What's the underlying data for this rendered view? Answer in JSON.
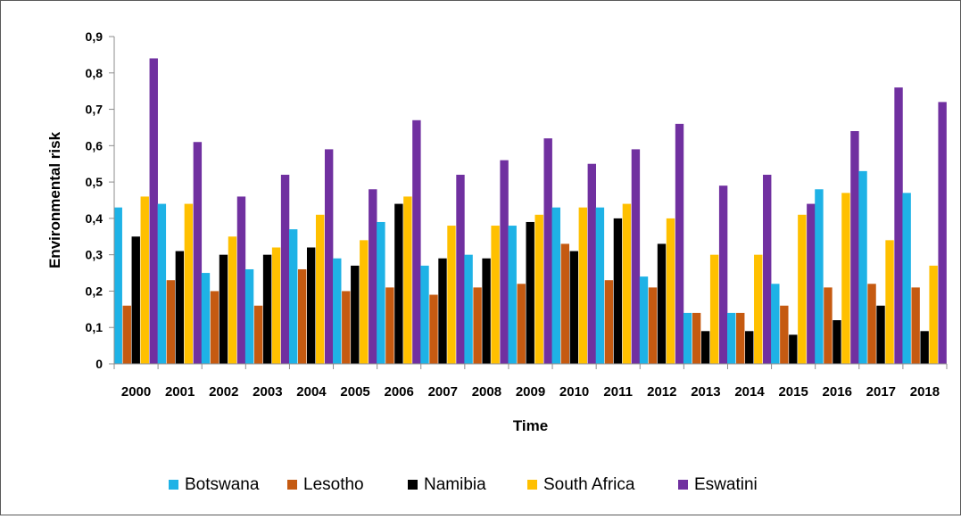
{
  "chart_data": {
    "type": "bar",
    "title": "",
    "xlabel": "Time",
    "ylabel": "Environmental risk",
    "ylim": [
      0,
      0.9
    ],
    "yticks": [
      "0",
      "0,1",
      "0,2",
      "0,3",
      "0,4",
      "0,5",
      "0,6",
      "0,7",
      "0,8",
      "0,9"
    ],
    "categories": [
      "2000",
      "2001",
      "2002",
      "2003",
      "2004",
      "2005",
      "2006",
      "2007",
      "2008",
      "2009",
      "2010",
      "2011",
      "2012",
      "2013",
      "2014",
      "2015",
      "2016",
      "2017",
      "2018"
    ],
    "legend_position": "bottom",
    "series": [
      {
        "name": "Botswana",
        "color": "#1EB2E6",
        "values": [
          0.43,
          0.44,
          0.25,
          0.26,
          0.37,
          0.29,
          0.39,
          0.27,
          0.3,
          0.38,
          0.43,
          0.43,
          0.24,
          0.14,
          0.14,
          0.22,
          0.48,
          0.53,
          0.47
        ]
      },
      {
        "name": "Lesotho",
        "color": "#C55A11",
        "values": [
          0.16,
          0.23,
          0.2,
          0.16,
          0.26,
          0.2,
          0.21,
          0.19,
          0.21,
          0.22,
          0.33,
          0.23,
          0.21,
          0.14,
          0.14,
          0.16,
          0.21,
          0.22,
          0.21
        ]
      },
      {
        "name": "Namibia",
        "color": "#000000",
        "values": [
          0.35,
          0.31,
          0.3,
          0.3,
          0.32,
          0.27,
          0.44,
          0.29,
          0.29,
          0.39,
          0.31,
          0.4,
          0.33,
          0.09,
          0.09,
          0.08,
          0.12,
          0.16,
          0.09
        ]
      },
      {
        "name": "South Africa",
        "color": "#FFC000",
        "values": [
          0.46,
          0.44,
          0.35,
          0.32,
          0.41,
          0.34,
          0.46,
          0.38,
          0.38,
          0.41,
          0.43,
          0.44,
          0.4,
          0.3,
          0.3,
          0.41,
          0.47,
          0.34,
          0.27
        ]
      },
      {
        "name": "Eswatini",
        "color": "#7030A0",
        "values": [
          0.84,
          0.61,
          0.46,
          0.52,
          0.59,
          0.48,
          0.67,
          0.52,
          0.56,
          0.62,
          0.55,
          0.59,
          0.66,
          0.49,
          0.52,
          0.44,
          0.64,
          0.76,
          0.72
        ]
      }
    ]
  }
}
